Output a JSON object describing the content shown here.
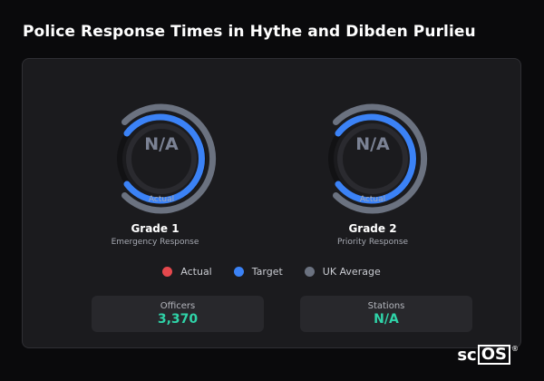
{
  "title": "Police Response Times in Hythe and Dibden Purlieu",
  "gauges": [
    {
      "value": "N/A",
      "sub": "Actual",
      "grade": "Grade 1",
      "description": "Emergency Response"
    },
    {
      "value": "N/A",
      "sub": "Actual",
      "grade": "Grade 2",
      "description": "Priority Response"
    }
  ],
  "legend": [
    {
      "label": "Actual",
      "color": "#e5484d"
    },
    {
      "label": "Target",
      "color": "#3b82f6"
    },
    {
      "label": "UK Average",
      "color": "#6b7280"
    }
  ],
  "stats": [
    {
      "label": "Officers",
      "value": "3,370"
    },
    {
      "label": "Stations",
      "value": "N/A"
    }
  ],
  "logo": {
    "prefix": "sc",
    "boxed": "OS",
    "reg": "®"
  },
  "colors": {
    "accent_green": "#2fd3a8",
    "target_blue": "#3b82f6",
    "ukavg_gray": "#6b7280"
  }
}
